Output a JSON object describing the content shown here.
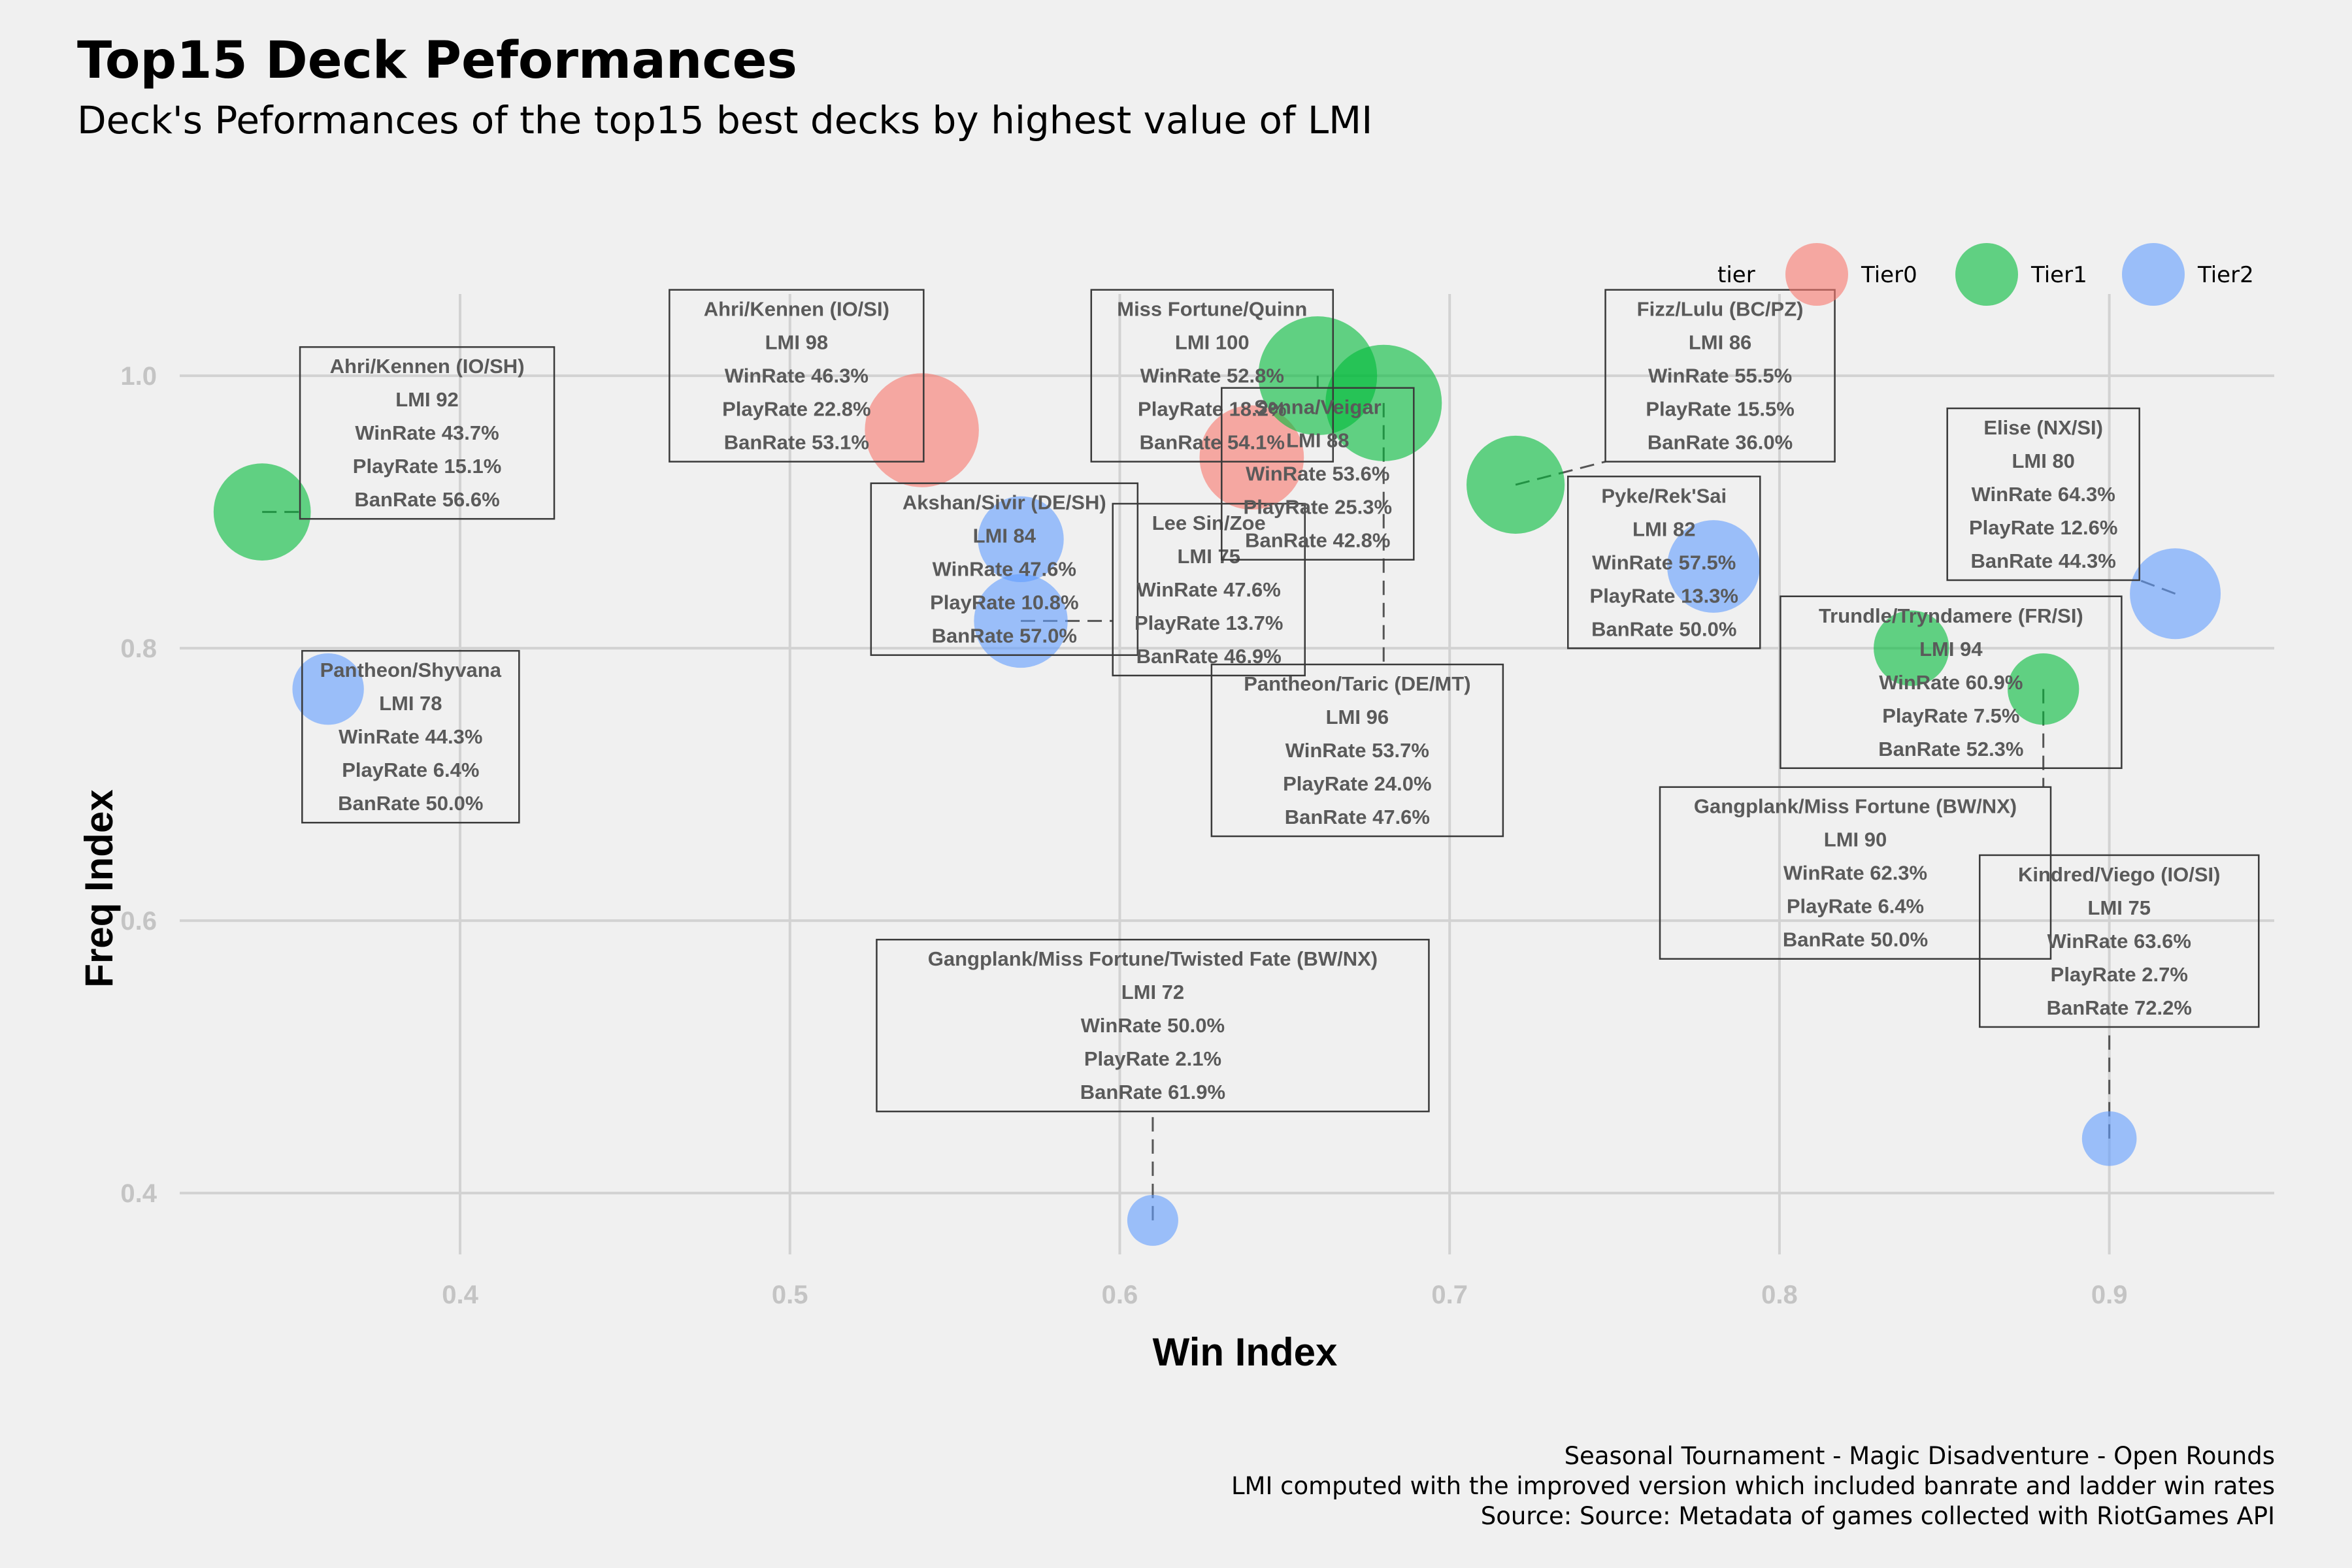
{
  "title": "Top15 Deck Peformances",
  "subtitle": "Deck's Peformances of the top15 best decks by highest value of LMI",
  "caption": [
    "Seasonal Tournament - Magic Disadventure - Open Rounds",
    "LMI computed with the improved version which included banrate and ladder win rates",
    "Source: Source: Metadata of games collected with RiotGames API"
  ],
  "chart_data": {
    "type": "scatter",
    "xlabel": "Win Index",
    "ylabel": "Freq Index",
    "xlim": [
      0.315,
      0.95
    ],
    "ylim": [
      0.355,
      1.06
    ],
    "xticks": [
      "0.4",
      "0.5",
      "0.6",
      "0.7",
      "0.8",
      "0.9"
    ],
    "yticks": [
      "0.4",
      "0.6",
      "0.8",
      "1.0"
    ],
    "grid": true,
    "legend": {
      "title": "tier",
      "placement": "top-right",
      "items": [
        {
          "name": "Tier0",
          "color": "#f8766d"
        },
        {
          "name": "Tier1",
          "color": "#00ba38"
        },
        {
          "name": "Tier2",
          "color": "#619cff"
        }
      ]
    },
    "points": [
      {
        "deck": "Ahri/Kennen (IO/SH)",
        "x": 0.34,
        "y": 0.9,
        "tier": "Tier1",
        "lmi": "LMI 92",
        "winrate": "WinRate 43.7%",
        "playrate": "PlayRate 15.1%",
        "banrate": "BanRate 56.6%",
        "label_x": 0.39,
        "label_y": 0.958
      },
      {
        "deck": "Pantheon/Shyvana",
        "x": 0.36,
        "y": 0.77,
        "tier": "Tier2",
        "lmi": "LMI 78",
        "winrate": "WinRate 44.3%",
        "playrate": "PlayRate 6.4%",
        "banrate": "BanRate 50.0%",
        "label_x": 0.385,
        "label_y": 0.735
      },
      {
        "deck": "Ahri/Kennen (IO/SI)",
        "x": 0.54,
        "y": 0.96,
        "tier": "Tier0",
        "lmi": "LMI 98",
        "winrate": "WinRate 46.3%",
        "playrate": "PlayRate 22.8%",
        "banrate": "BanRate 53.1%",
        "label_x": 0.502,
        "label_y": 1.0
      },
      {
        "deck": "Akshan/Sivir (DE/SH)",
        "x": 0.57,
        "y": 0.88,
        "tier": "Tier2",
        "lmi": "LMI 84",
        "winrate": "WinRate 47.6%",
        "playrate": "PlayRate 10.8%",
        "banrate": "BanRate 57.0%",
        "label_x": 0.565,
        "label_y": 0.858
      },
      {
        "deck": "Lee Sin/Zoe",
        "x": 0.57,
        "y": 0.82,
        "tier": "Tier2",
        "lmi": "LMI 75",
        "winrate": "WinRate 47.6%",
        "playrate": "PlayRate 13.7%",
        "banrate": "BanRate 46.9%",
        "label_x": 0.627,
        "label_y": 0.843
      },
      {
        "deck": "Miss Fortune/Quinn",
        "x": 0.64,
        "y": 0.94,
        "tier": "Tier0",
        "lmi": "LMI 100",
        "winrate": "WinRate 52.8%",
        "playrate": "PlayRate 18.2%",
        "banrate": "BanRate 54.1%",
        "label_x": 0.628,
        "label_y": 1.0
      },
      {
        "deck": "Senna/Veigar",
        "x": 0.66,
        "y": 1.0,
        "tier": "Tier1",
        "lmi": "LMI 88",
        "winrate": "WinRate 53.6%",
        "playrate": "PlayRate 25.3%",
        "banrate": "BanRate 42.8%",
        "label_x": 0.66,
        "label_y": 0.928
      },
      {
        "deck": "Pantheon/Taric (DE/MT)",
        "x": 0.68,
        "y": 0.98,
        "tier": "Tier1",
        "lmi": "LMI 96",
        "winrate": "WinRate 53.7%",
        "playrate": "PlayRate 24.0%",
        "banrate": "BanRate 47.6%",
        "label_x": 0.672,
        "label_y": 0.725
      },
      {
        "deck": "Fizz/Lulu (BC/PZ)",
        "x": 0.72,
        "y": 0.92,
        "tier": "Tier1",
        "lmi": "LMI 86",
        "winrate": "WinRate 55.5%",
        "playrate": "PlayRate 15.5%",
        "banrate": "BanRate 36.0%",
        "label_x": 0.782,
        "label_y": 1.0
      },
      {
        "deck": "Pyke/Rek'Sai",
        "x": 0.78,
        "y": 0.86,
        "tier": "Tier2",
        "lmi": "LMI 82",
        "winrate": "WinRate 57.5%",
        "playrate": "PlayRate 13.3%",
        "banrate": "BanRate 50.0%",
        "label_x": 0.765,
        "label_y": 0.863
      },
      {
        "deck": "Elise (NX/SI)",
        "x": 0.92,
        "y": 0.84,
        "tier": "Tier2",
        "lmi": "LMI 80",
        "winrate": "WinRate 64.3%",
        "playrate": "PlayRate 12.6%",
        "banrate": "BanRate 44.3%",
        "label_x": 0.88,
        "label_y": 0.913
      },
      {
        "deck": "Trundle/Tryndamere (FR/SI)",
        "x": 0.84,
        "y": 0.8,
        "tier": "Tier1",
        "lmi": "LMI 94",
        "winrate": "WinRate 60.9%",
        "playrate": "PlayRate 7.5%",
        "banrate": "BanRate 52.3%",
        "label_x": 0.852,
        "label_y": 0.775
      },
      {
        "deck": "Gangplank/Miss Fortune (BW/NX)",
        "x": 0.88,
        "y": 0.77,
        "tier": "Tier1",
        "lmi": "LMI 90",
        "winrate": "WinRate 62.3%",
        "playrate": "PlayRate 6.4%",
        "banrate": "BanRate 50.0%",
        "label_x": 0.823,
        "label_y": 0.635
      },
      {
        "deck": "Kindred/Viego (IO/SI)",
        "x": 0.9,
        "y": 0.44,
        "tier": "Tier2",
        "lmi": "LMI 75",
        "winrate": "WinRate 63.6%",
        "playrate": "PlayRate 2.7%",
        "banrate": "BanRate 72.2%",
        "label_x": 0.903,
        "label_y": 0.585
      },
      {
        "deck": "Gangplank/Miss Fortune/Twisted Fate (BW/NX)",
        "x": 0.61,
        "y": 0.38,
        "tier": "Tier2",
        "lmi": "LMI 72",
        "winrate": "WinRate 50.0%",
        "playrate": "PlayRate 2.1%",
        "banrate": "BanRate 61.9%",
        "label_x": 0.61,
        "label_y": 0.523
      }
    ]
  }
}
